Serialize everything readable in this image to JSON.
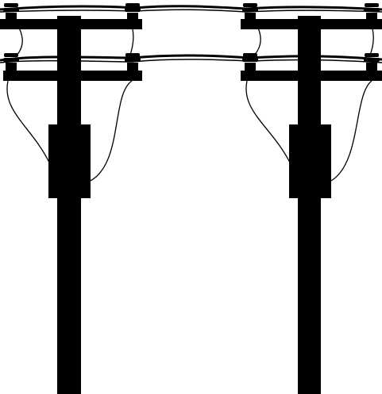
{
  "scene": {
    "subject": "two-utility-poles-with-power-lines",
    "colors": {
      "background": "#ffffff",
      "ink": "#000000"
    },
    "poles": [
      {
        "id": "left-pole",
        "crossarms": 2,
        "insulators": 4,
        "has_transformer": true
      },
      {
        "id": "right-pole",
        "crossarms": 2,
        "insulators": 4,
        "has_transformer": true
      }
    ],
    "power_lines": 2
  }
}
